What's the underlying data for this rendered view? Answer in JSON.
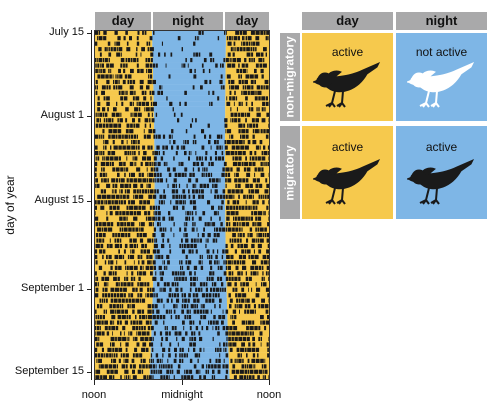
{
  "actogram": {
    "headers": [
      "day",
      "night",
      "day"
    ],
    "ylabel": "day of year",
    "yticks": [
      "July 15",
      "August 1",
      "August 15",
      "September 1",
      "September 15"
    ],
    "xticks": [
      "noon",
      "midnight",
      "noon"
    ],
    "colors": {
      "day": "#f6c94d",
      "night": "#7eb6e6",
      "activity": "#1a1a1a"
    }
  },
  "schematic": {
    "col_headers": [
      "day",
      "night"
    ],
    "rows": [
      {
        "label": "non-migratory",
        "day_state": "active",
        "night_state": "not active"
      },
      {
        "label": "migratory",
        "day_state": "active",
        "night_state": "active"
      }
    ],
    "colors": {
      "day": "#f6c94d",
      "night": "#7eb6e6",
      "bird_active": "#1a1a1a",
      "bird_inactive": "#ffffff",
      "header": "#a9a9aa"
    }
  }
}
